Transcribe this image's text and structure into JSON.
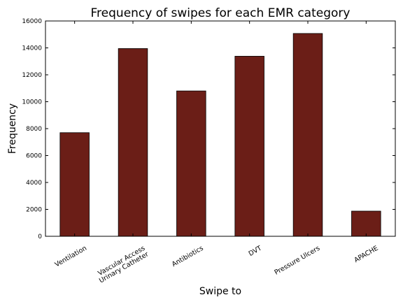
{
  "chart_data": {
    "type": "bar",
    "title": "Frequency of swipes for each EMR category",
    "xlabel": "Swipe to",
    "ylabel": "Frequency",
    "categories": [
      [
        "Ventilation"
      ],
      [
        "Vascular Access",
        "Urinary Catheter"
      ],
      [
        "Antibiotics"
      ],
      [
        "DVT"
      ],
      [
        "Pressure Ulcers"
      ],
      [
        "APACHE"
      ]
    ],
    "values": [
      7700,
      13950,
      10800,
      13380,
      15070,
      1870
    ],
    "ylim": [
      0,
      16000
    ],
    "yticks": [
      0,
      2000,
      4000,
      6000,
      8000,
      10000,
      12000,
      14000,
      16000
    ],
    "bar_color": "#6b1e17",
    "grid": false,
    "legend": "none"
  }
}
